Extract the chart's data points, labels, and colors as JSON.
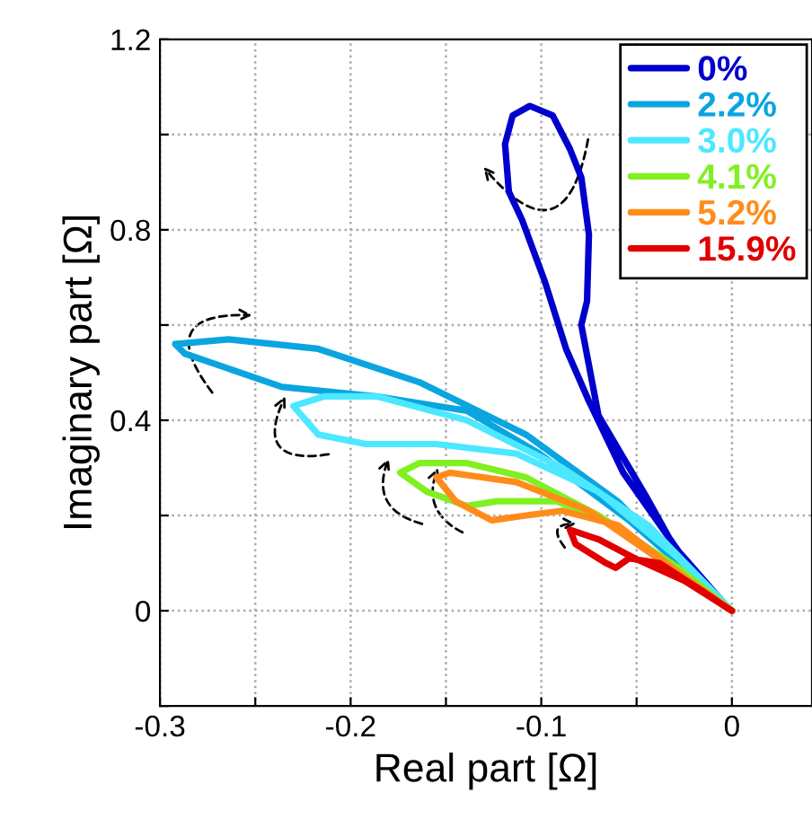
{
  "chart_data": {
    "type": "line",
    "xlabel": "Real part [Ω]",
    "ylabel": "Imaginary part [Ω]",
    "xlim": [
      -0.3,
      0.042
    ],
    "ylim": [
      -0.2,
      1.2
    ],
    "xticks": [
      -0.3,
      {
        "value": -0.25,
        "label": null
      },
      -0.2,
      {
        "value": -0.15,
        "label": null
      },
      -0.1,
      {
        "value": -0.05,
        "label": null
      },
      0
    ],
    "yticks": [
      {
        "value": -0.2,
        "label": null
      },
      0,
      {
        "value": 0.2,
        "label": null
      },
      0.4,
      {
        "value": 0.6,
        "label": null
      },
      0.8,
      {
        "value": 1.0,
        "label": null
      },
      1.2
    ],
    "grid": true,
    "legend": "top right",
    "marker": "none",
    "line_style": "solid",
    "series": [
      {
        "name": "0%",
        "color": "#0000cc",
        "x": [
          0,
          -0.02,
          -0.045,
          -0.07,
          -0.079,
          -0.076,
          -0.075,
          -0.079,
          -0.085,
          -0.094,
          -0.106,
          -0.115,
          -0.119,
          -0.117,
          -0.11,
          -0.098,
          -0.087,
          -0.075,
          -0.057,
          -0.028,
          -0.004
        ],
        "values": [
          0,
          0.06,
          0.24,
          0.41,
          0.6,
          0.65,
          0.79,
          0.91,
          0.97,
          1.04,
          1.06,
          1.04,
          0.98,
          0.88,
          0.82,
          0.69,
          0.55,
          0.44,
          0.29,
          0.125,
          0.015
        ]
      },
      {
        "name": "2.2%",
        "color": "#0aa5e0",
        "x": [
          0,
          -0.028,
          -0.06,
          -0.108,
          -0.164,
          -0.217,
          -0.264,
          -0.292,
          -0.287,
          -0.236,
          -0.186,
          -0.139,
          -0.101,
          -0.054,
          -0.028,
          -0.004
        ],
        "values": [
          0,
          0.1,
          0.23,
          0.37,
          0.48,
          0.55,
          0.57,
          0.56,
          0.54,
          0.47,
          0.45,
          0.42,
          0.33,
          0.19,
          0.1,
          0.01
        ]
      },
      {
        "name": "3.0%",
        "color": "#4ce8ff",
        "x": [
          0,
          -0.044,
          -0.089,
          -0.139,
          -0.186,
          -0.214,
          -0.23,
          -0.217,
          -0.192,
          -0.155,
          -0.113,
          -0.07,
          -0.028,
          -0.004
        ],
        "values": [
          0,
          0.18,
          0.3,
          0.4,
          0.45,
          0.45,
          0.43,
          0.37,
          0.35,
          0.35,
          0.33,
          0.25,
          0.11,
          0.01
        ]
      },
      {
        "name": "4.1%",
        "color": "#80f020",
        "x": [
          0,
          -0.028,
          -0.07,
          -0.108,
          -0.139,
          -0.164,
          -0.174,
          -0.16,
          -0.139,
          -0.123,
          -0.092,
          -0.066,
          -0.028,
          -0.004
        ],
        "values": [
          0,
          0.09,
          0.2,
          0.28,
          0.31,
          0.31,
          0.29,
          0.25,
          0.22,
          0.23,
          0.23,
          0.19,
          0.08,
          0.01
        ]
      },
      {
        "name": "5.2%",
        "color": "#ff8c1a",
        "x": [
          0,
          -0.028,
          -0.075,
          -0.113,
          -0.148,
          -0.155,
          -0.145,
          -0.126,
          -0.108,
          -0.089,
          -0.06,
          -0.028,
          -0.004
        ],
        "values": [
          0,
          0.08,
          0.21,
          0.27,
          0.29,
          0.28,
          0.23,
          0.19,
          0.2,
          0.21,
          0.18,
          0.08,
          0.01
        ]
      },
      {
        "name": "15.9%",
        "color": "#e00000",
        "x": [
          0,
          -0.025,
          -0.051,
          -0.07,
          -0.085,
          -0.082,
          -0.066,
          -0.061,
          -0.054,
          -0.038,
          -0.015,
          -0.004
        ],
        "values": [
          0,
          0.063,
          0.11,
          0.15,
          0.17,
          0.14,
          0.1,
          0.09,
          0.11,
          0.1,
          0.04,
          0.01
        ]
      }
    ]
  }
}
